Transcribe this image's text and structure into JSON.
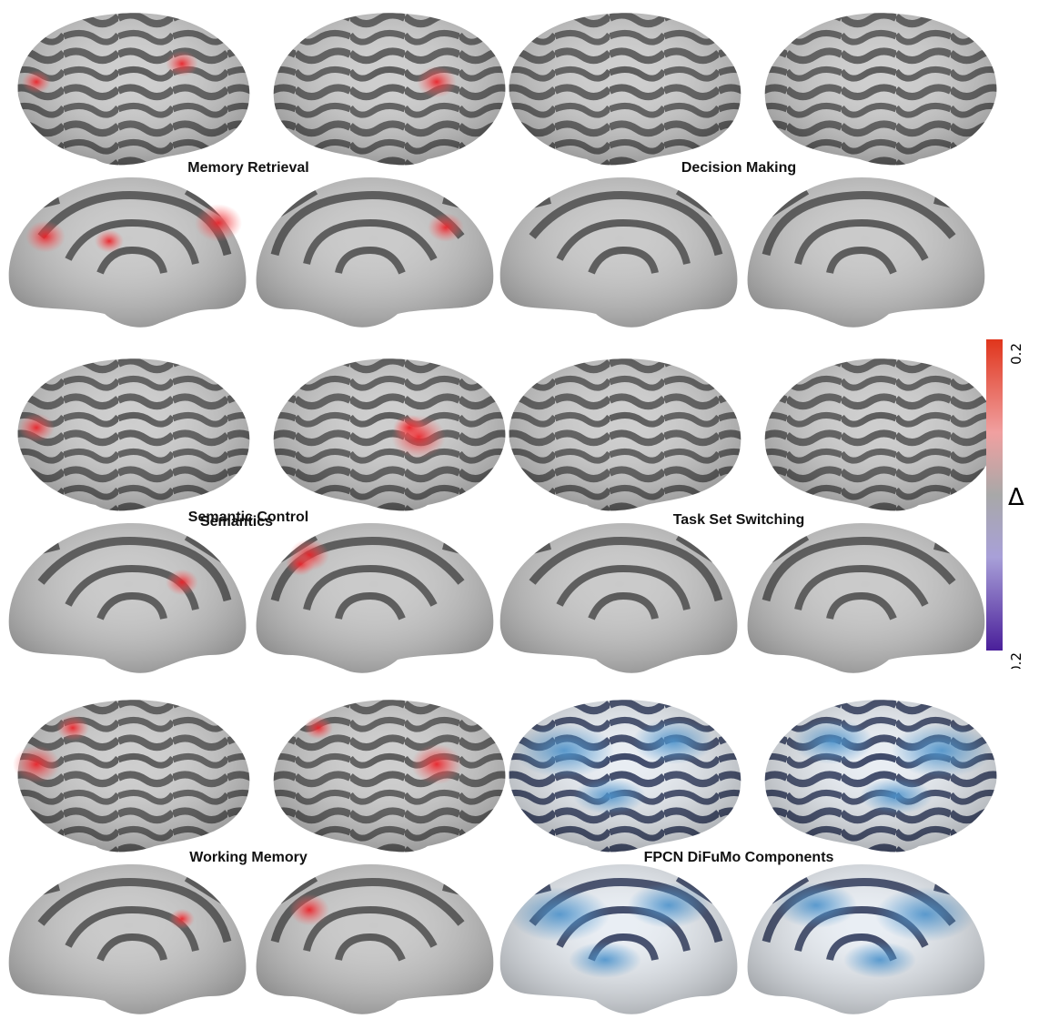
{
  "panels": [
    {
      "title": "Memory Retrieval",
      "scheme": "grey"
    },
    {
      "title": "Decision Making",
      "scheme": "grey"
    },
    {
      "title": "Semantic Control",
      "overlap_title": "Semantics",
      "scheme": "grey"
    },
    {
      "title": "Task Set Switching",
      "scheme": "grey"
    },
    {
      "title": "Working Memory",
      "scheme": "grey"
    },
    {
      "title": "FPCN DiFuMo Components",
      "scheme": "blue"
    }
  ],
  "colorbar": {
    "label": "Δ",
    "max_label": "0.2",
    "min_label": "- 0.2",
    "colors": {
      "high": "#e0351c",
      "mid_high": "#f0a0a0",
      "mid": "#a8a8a8",
      "mid_low": "#a8a0d8",
      "low": "#4a1f9a"
    }
  },
  "activation_color": "#e8232a",
  "network_color": "#3f8fd0"
}
